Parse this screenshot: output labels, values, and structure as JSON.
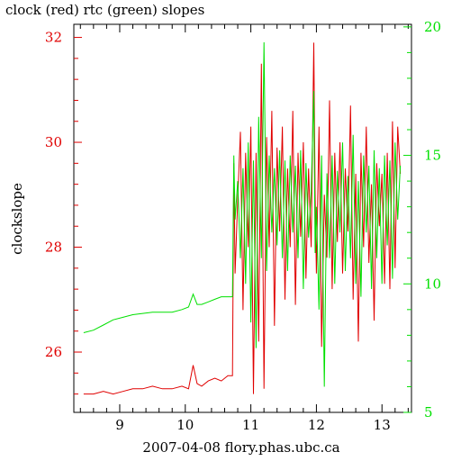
{
  "chart_data": {
    "type": "line",
    "title": "clock (red) rtc (green) slopes",
    "xlabel": "2007-04-08 flory.phas.ubc.ca",
    "ylabel": "clockslope",
    "xlim": [
      8.3,
      13.45
    ],
    "ylim_left": [
      24.85,
      32.25
    ],
    "ylim_right": [
      5.0,
      20.1
    ],
    "x_ticks": [
      9,
      10,
      11,
      12,
      13
    ],
    "y_ticks_left": [
      26,
      28,
      30,
      32
    ],
    "y_ticks_right": [
      5,
      10,
      15,
      20
    ],
    "colors": {
      "clock": "#e00000",
      "rtc": "#00e000",
      "axis": "#000000"
    },
    "series": [
      {
        "name": "clock",
        "color": "#e00000",
        "axis": "left",
        "x": [
          8.45,
          8.6,
          8.75,
          8.9,
          9.05,
          9.2,
          9.35,
          9.5,
          9.65,
          9.8,
          9.95,
          10.05,
          10.12,
          10.18,
          10.25,
          10.35,
          10.45,
          10.55,
          10.65,
          10.72,
          10.74,
          10.76,
          10.8,
          10.84,
          10.88,
          10.92,
          10.96,
          11.0,
          11.04,
          11.08,
          11.12,
          11.16,
          11.2,
          11.24,
          11.28,
          11.32,
          11.36,
          11.4,
          11.44,
          11.48,
          11.52,
          11.56,
          11.6,
          11.64,
          11.68,
          11.72,
          11.76,
          11.8,
          11.84,
          11.88,
          11.92,
          11.96,
          11.98,
          12.0,
          12.04,
          12.08,
          12.12,
          12.16,
          12.2,
          12.24,
          12.28,
          12.32,
          12.36,
          12.4,
          12.44,
          12.48,
          12.52,
          12.56,
          12.6,
          12.64,
          12.68,
          12.72,
          12.76,
          12.8,
          12.84,
          12.88,
          12.92,
          12.96,
          13.0,
          13.04,
          13.08,
          13.12,
          13.16,
          13.2,
          13.24,
          13.28
        ],
        "values": [
          25.2,
          25.2,
          25.25,
          25.2,
          25.25,
          25.3,
          25.3,
          25.35,
          25.3,
          25.3,
          25.35,
          25.3,
          25.75,
          25.4,
          25.35,
          25.45,
          25.5,
          25.45,
          25.55,
          25.55,
          29.6,
          27.5,
          28.9,
          30.2,
          26.8,
          29.8,
          28.0,
          30.3,
          25.2,
          29.8,
          26.2,
          31.5,
          25.3,
          30.1,
          28.0,
          30.6,
          26.5,
          29.9,
          28.3,
          30.3,
          27.0,
          29.5,
          28.0,
          30.6,
          26.9,
          29.8,
          28.2,
          30.0,
          27.4,
          29.5,
          28.0,
          31.9,
          29.0,
          27.5,
          30.3,
          26.1,
          29.0,
          27.8,
          30.8,
          27.2,
          29.8,
          28.1,
          30.0,
          27.5,
          29.5,
          28.3,
          30.7,
          27.0,
          29.4,
          26.2,
          29.8,
          28.0,
          30.3,
          27.7,
          29.2,
          26.6,
          29.6,
          28.4,
          29.4,
          27.3,
          29.8,
          27.2,
          30.4,
          27.6,
          30.3,
          29.4
        ]
      },
      {
        "name": "rtc",
        "color": "#00e000",
        "axis": "right",
        "x": [
          8.45,
          8.6,
          8.75,
          8.9,
          9.05,
          9.2,
          9.35,
          9.5,
          9.65,
          9.8,
          9.95,
          10.05,
          10.12,
          10.18,
          10.25,
          10.35,
          10.45,
          10.55,
          10.65,
          10.72,
          10.74,
          10.76,
          10.8,
          10.84,
          10.88,
          10.92,
          10.96,
          11.0,
          11.04,
          11.08,
          11.12,
          11.16,
          11.2,
          11.24,
          11.28,
          11.32,
          11.36,
          11.4,
          11.44,
          11.48,
          11.52,
          11.56,
          11.6,
          11.64,
          11.68,
          11.72,
          11.76,
          11.8,
          11.84,
          11.88,
          11.92,
          11.96,
          11.98,
          12.0,
          12.04,
          12.08,
          12.12,
          12.16,
          12.2,
          12.24,
          12.28,
          12.32,
          12.36,
          12.4,
          12.44,
          12.48,
          12.52,
          12.56,
          12.6,
          12.64,
          12.68,
          12.72,
          12.76,
          12.8,
          12.84,
          12.88,
          12.92,
          12.96,
          13.0,
          13.04,
          13.08,
          13.12,
          13.16,
          13.2,
          13.24,
          13.28
        ],
        "values": [
          8.1,
          8.2,
          8.4,
          8.6,
          8.7,
          8.8,
          8.85,
          8.9,
          8.9,
          8.9,
          9.0,
          9.1,
          9.6,
          9.2,
          9.2,
          9.3,
          9.4,
          9.5,
          9.5,
          9.5,
          15.0,
          12.5,
          14.0,
          11.0,
          14.5,
          10.0,
          15.5,
          8.5,
          14.8,
          7.5,
          16.5,
          11.0,
          19.4,
          10.5,
          15.0,
          12.0,
          14.5,
          11.5,
          15.2,
          11.0,
          14.8,
          10.5,
          15.0,
          12.0,
          14.6,
          11.0,
          15.2,
          9.8,
          14.7,
          11.8,
          13.6,
          17.5,
          11.2,
          13.0,
          9.0,
          15.0,
          6.0,
          14.3,
          11.0,
          15.0,
          10.0,
          14.4,
          12.0,
          15.5,
          10.5,
          14.2,
          11.0,
          15.8,
          10.0,
          14.0,
          9.5,
          15.0,
          12.0,
          14.6,
          9.8,
          15.2,
          11.0,
          14.5,
          10.0,
          15.0,
          11.5,
          14.8,
          10.2,
          15.5,
          12.5,
          14.6
        ]
      }
    ]
  }
}
